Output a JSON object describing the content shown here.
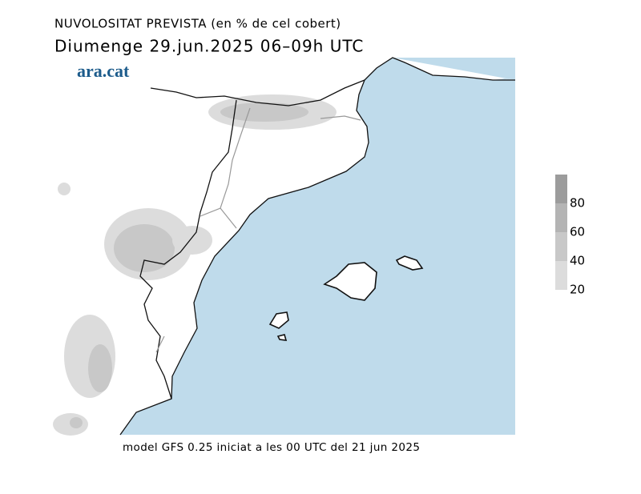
{
  "header": {
    "title": "NUVOLOSITAT PREVISTA (en % de cel cobert)",
    "subtitle": "Diumenge  29.jun.2025 06–09h UTC"
  },
  "logo": "ara.cat",
  "colorbar": {
    "range": [
      20,
      100
    ],
    "ticks": [
      20,
      40,
      60,
      80
    ],
    "colors": [
      "#dcdcdc",
      "#c8c8c8",
      "#b4b4b4",
      "#9c9c9c"
    ]
  },
  "footer": "model GFS 0.25 iniciat a les 00 UTC del 21 jun 2025"
}
